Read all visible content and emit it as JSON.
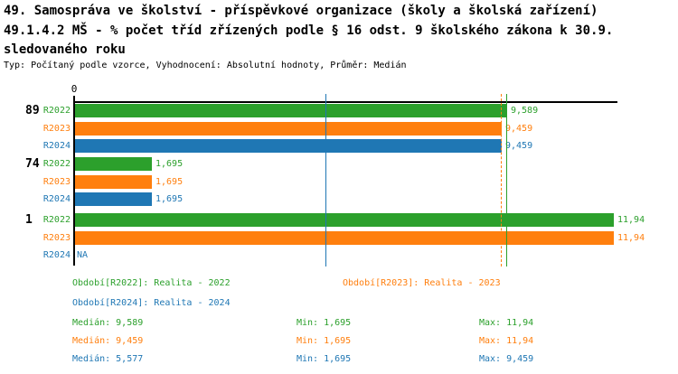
{
  "title": {
    "line1": "49. Samospráva ve školství - příspěvkové organizace (školy a školská zařízení)",
    "line2": "49.1.4.2 MŠ - % počet tříd zřízených podle § 16 odst. 9 školského zákona k 30.9.",
    "line3": "sledovaného roku",
    "subtitle": "Typ: Počítaný podle vzorce, Vyhodnocení: Absolutní hodnoty, Průměr: Medián"
  },
  "colors": {
    "r2022": "#2ca02c",
    "r2023": "#ff7f0e",
    "r2024": "#1f77b4",
    "axis": "#000000"
  },
  "chart_data": {
    "type": "bar",
    "orientation": "horizontal",
    "origin_label": "0",
    "xlim": [
      0,
      11.94
    ],
    "categories": [
      "89",
      "74",
      "1"
    ],
    "series": [
      {
        "name": "R2022",
        "color_key": "r2022",
        "values": [
          9.589,
          1.695,
          11.94
        ],
        "labels": [
          "9,589",
          "1,695",
          "11,94"
        ],
        "median": 9.589
      },
      {
        "name": "R2023",
        "color_key": "r2023",
        "values": [
          9.459,
          1.695,
          11.94
        ],
        "labels": [
          "9,459",
          "1,695",
          "11,94"
        ],
        "median": 9.459
      },
      {
        "name": "R2024",
        "color_key": "r2024",
        "values": [
          9.459,
          1.695,
          null
        ],
        "labels": [
          "9,459",
          "1,695",
          "NA"
        ],
        "median": 5.577
      }
    ],
    "median_lines": [
      {
        "value": 9.589,
        "color_key": "r2022",
        "style": "solid"
      },
      {
        "value": 9.459,
        "color_key": "r2023",
        "style": "dashed"
      },
      {
        "value": 5.577,
        "color_key": "r2024",
        "style": "solid"
      }
    ]
  },
  "legend": {
    "periods": [
      {
        "label": "Období[R2022]: Realita - 2022",
        "color_key": "r2022",
        "col": 0,
        "row": 0
      },
      {
        "label": "Období[R2023]: Realita - 2023",
        "color_key": "r2023",
        "col": 1,
        "row": 0
      },
      {
        "label": "Období[R2024]: Realita - 2024",
        "color_key": "r2024",
        "col": 0,
        "row": 1
      }
    ],
    "stats": [
      {
        "median": "Medián: 9,589",
        "min": "Min: 1,695",
        "max": "Max: 11,94",
        "color_key": "r2022"
      },
      {
        "median": "Medián: 9,459",
        "min": "Min: 1,695",
        "max": "Max: 11,94",
        "color_key": "r2023"
      },
      {
        "median": "Medián: 5,577",
        "min": "Min: 1,695",
        "max": "Max: 9,459",
        "color_key": "r2024"
      }
    ]
  }
}
